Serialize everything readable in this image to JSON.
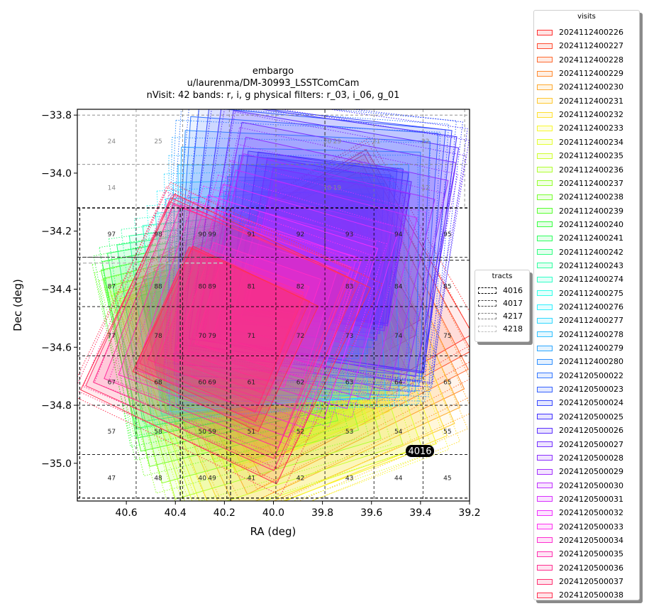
{
  "chart_data": {
    "type": "scatter",
    "title": {
      "line1": "embargo",
      "line2": "u/laurenma/DM-30993_LSSTComCam",
      "line3": "nVisit: 42  bands: r, i, g  physical filters: r_03, i_06, g_01"
    },
    "xlabel": "RA (deg)",
    "ylabel": "Dec (deg)",
    "xlim": [
      40.8,
      39.2
    ],
    "ylim": [
      -35.13,
      -33.78
    ],
    "x_ticks": [
      "40.6",
      "40.4",
      "40.2",
      "40.0",
      "39.8",
      "39.6",
      "39.4",
      "39.2"
    ],
    "x_tick_values": [
      40.6,
      40.4,
      40.2,
      40.0,
      39.8,
      39.6,
      39.4,
      39.2
    ],
    "y_ticks": [
      "−33.8",
      "−34.0",
      "−34.2",
      "−34.4",
      "−34.6",
      "−34.8",
      "−35.0"
    ],
    "y_tick_values": [
      -33.8,
      -34.0,
      -34.2,
      -34.4,
      -34.6,
      -34.8,
      -35.0
    ],
    "visits_legend_title": "visits",
    "visits": [
      {
        "id": "2024112400226",
        "color": "#ff3030"
      },
      {
        "id": "2024112400227",
        "color": "#ff4a30"
      },
      {
        "id": "2024112400228",
        "color": "#ff6a30"
      },
      {
        "id": "2024112400229",
        "color": "#ff8a30"
      },
      {
        "id": "2024112400230",
        "color": "#ffaa30"
      },
      {
        "id": "2024112400231",
        "color": "#ffc830"
      },
      {
        "id": "2024112400232",
        "color": "#ffe030"
      },
      {
        "id": "2024112400233",
        "color": "#f8f830"
      },
      {
        "id": "2024112400234",
        "color": "#e4ff30"
      },
      {
        "id": "2024112400235",
        "color": "#cfff30"
      },
      {
        "id": "2024112400236",
        "color": "#b0ff30"
      },
      {
        "id": "2024112400237",
        "color": "#94ff30"
      },
      {
        "id": "2024112400238",
        "color": "#78ff30"
      },
      {
        "id": "2024112400239",
        "color": "#58ff30"
      },
      {
        "id": "2024112400240",
        "color": "#38ff40"
      },
      {
        "id": "2024112400241",
        "color": "#30ff60"
      },
      {
        "id": "2024112400242",
        "color": "#30ff80"
      },
      {
        "id": "2024112400243",
        "color": "#30ffa0"
      },
      {
        "id": "2024112400274",
        "color": "#30ffc8"
      },
      {
        "id": "2024112400275",
        "color": "#30ffe8"
      },
      {
        "id": "2024112400276",
        "color": "#30f0ff"
      },
      {
        "id": "2024112400277",
        "color": "#30d8ff"
      },
      {
        "id": "2024112400278",
        "color": "#30c0ff"
      },
      {
        "id": "2024112400279",
        "color": "#30a8ff"
      },
      {
        "id": "2024112400280",
        "color": "#3090ff"
      },
      {
        "id": "2024120500022",
        "color": "#3478ff"
      },
      {
        "id": "2024120500023",
        "color": "#3460ff"
      },
      {
        "id": "2024120500024",
        "color": "#3848ff"
      },
      {
        "id": "2024120500025",
        "color": "#4030ff"
      },
      {
        "id": "2024120500026",
        "color": "#5c30ff"
      },
      {
        "id": "2024120500027",
        "color": "#7430ff"
      },
      {
        "id": "2024120500028",
        "color": "#8c30ff"
      },
      {
        "id": "2024120500029",
        "color": "#a430ff"
      },
      {
        "id": "2024120500030",
        "color": "#c030ff"
      },
      {
        "id": "2024120500031",
        "color": "#d830ff"
      },
      {
        "id": "2024120500032",
        "color": "#f030ff"
      },
      {
        "id": "2024120500033",
        "color": "#ff30f0"
      },
      {
        "id": "2024120500034",
        "color": "#ff30d0"
      },
      {
        "id": "2024120500035",
        "color": "#ff30b0"
      },
      {
        "id": "2024120500036",
        "color": "#ff3090"
      },
      {
        "id": "2024120500037",
        "color": "#ff3070"
      },
      {
        "id": "2024120500038",
        "color": "#ff3050"
      }
    ],
    "tracts_legend_title": "tracts",
    "tracts": [
      {
        "id": "4016",
        "color": "#000000"
      },
      {
        "id": "4017",
        "color": "#404040"
      },
      {
        "id": "4217",
        "color": "#7f7f7f"
      },
      {
        "id": "4218",
        "color": "#bfbfbf"
      }
    ],
    "tract_label": "4016",
    "patches_4016": {
      "columns_ra": [
        40.66,
        40.47,
        40.29,
        40.09,
        39.89,
        39.69,
        39.49,
        39.29
      ],
      "rows_dec": [
        -34.21,
        -34.39,
        -34.56,
        -34.72,
        -34.89,
        -35.05
      ],
      "labels": [
        [
          "97",
          "98",
          "90",
          "91",
          "92",
          "93",
          "94",
          "95"
        ],
        [
          "87",
          "88",
          "80",
          "81",
          "82",
          "83",
          "84",
          "85"
        ],
        [
          "77",
          "78",
          "70",
          "71",
          "72",
          "73",
          "74",
          "75"
        ],
        [
          "67",
          "68",
          "60",
          "61",
          "62",
          "63",
          "64",
          "65"
        ],
        [
          "57",
          "58",
          "50",
          "51",
          "52",
          "53",
          "54",
          "55"
        ],
        [
          "47",
          "48",
          "40",
          "41",
          "42",
          "43",
          "44",
          "45"
        ]
      ],
      "offset_labels": [
        {
          "text": "99",
          "ra": 40.25,
          "dec": -34.21
        },
        {
          "text": "89",
          "ra": 40.25,
          "dec": -34.39
        },
        {
          "text": "79",
          "ra": 40.25,
          "dec": -34.56
        },
        {
          "text": "69",
          "ra": 40.25,
          "dec": -34.72
        },
        {
          "text": "59",
          "ra": 40.25,
          "dec": -34.89
        },
        {
          "text": "49",
          "ra": 40.25,
          "dec": -35.05
        }
      ]
    },
    "patches_upper": {
      "labels": [
        {
          "text": "24",
          "ra": 40.66,
          "dec": -33.89
        },
        {
          "text": "25",
          "ra": 40.47,
          "dec": -33.89
        },
        {
          "text": "20",
          "ra": 39.78,
          "dec": -33.89
        },
        {
          "text": "29",
          "ra": 39.74,
          "dec": -33.89
        },
        {
          "text": "21",
          "ra": 39.58,
          "dec": -33.89
        },
        {
          "text": "22",
          "ra": 39.38,
          "dec": -33.89
        },
        {
          "text": "14",
          "ra": 40.66,
          "dec": -34.05
        },
        {
          "text": "10",
          "ra": 39.78,
          "dec": -34.05
        },
        {
          "text": "19",
          "ra": 39.74,
          "dec": -34.05
        },
        {
          "text": "12",
          "ra": 39.38,
          "dec": -34.05
        }
      ]
    }
  }
}
